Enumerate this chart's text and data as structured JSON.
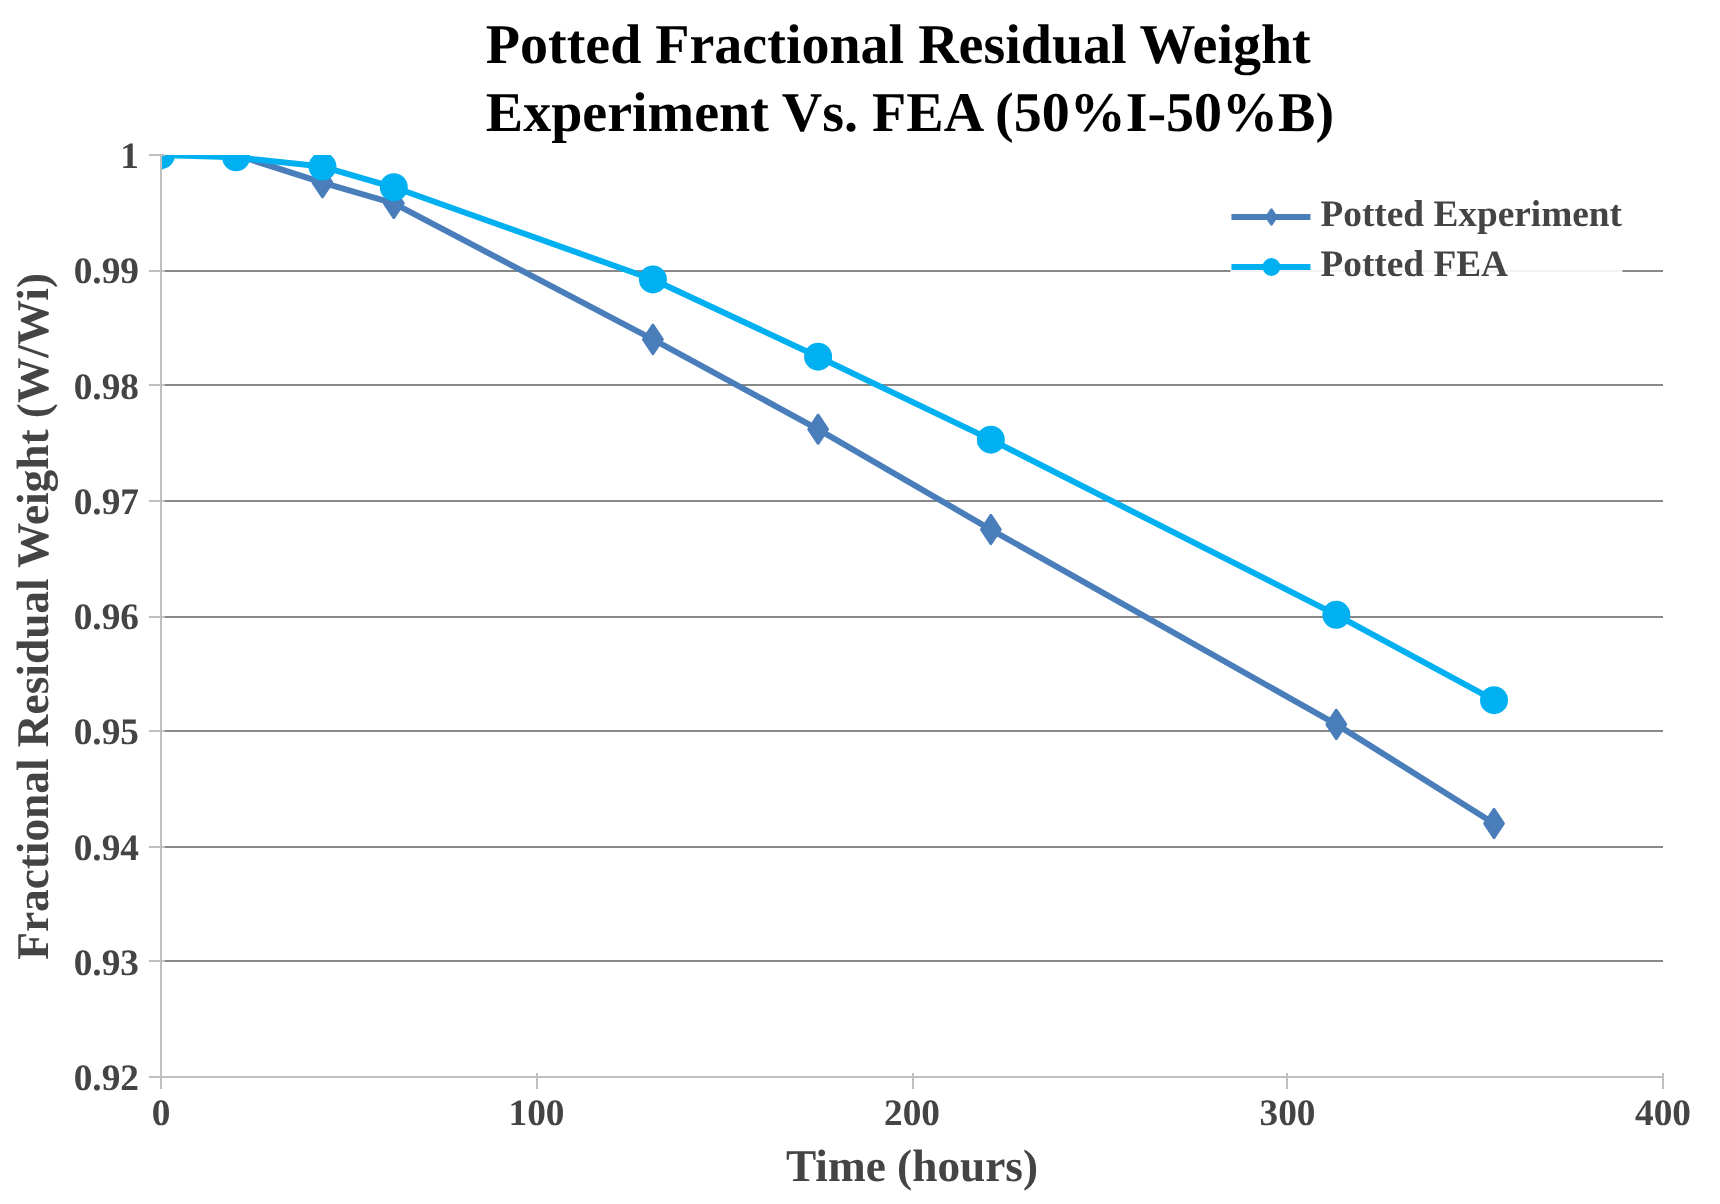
{
  "chart_data": {
    "type": "line",
    "title": "Potted Fractional Residual Weight\nExperiment Vs. FEA (50%I-50%B)",
    "xlabel": "Time (hours)",
    "ylabel": "Fractional Residual Weight (W/Wi)",
    "series": [
      {
        "name": "Potted Experiment",
        "color": "#4a7ebb",
        "marker": "diamond",
        "x": [
          0,
          20,
          43,
          62,
          131,
          175,
          221,
          313,
          355
        ],
        "values": [
          1.0,
          1.0,
          0.9976,
          0.9958,
          0.984,
          0.9762,
          0.9675,
          0.9506,
          0.942
        ]
      },
      {
        "name": "Potted FEA",
        "color": "#00b0f0",
        "marker": "circle",
        "x": [
          0,
          20,
          43,
          62,
          131,
          175,
          221,
          313,
          355
        ],
        "values": [
          1.0,
          0.9998,
          0.999,
          0.9972,
          0.9892,
          0.9825,
          0.9753,
          0.9601,
          0.9527
        ]
      }
    ],
    "xlim": [
      0,
      400
    ],
    "xticks": [
      0,
      100,
      200,
      300,
      400
    ],
    "ylim": [
      0.92,
      1.0
    ],
    "yticks": [
      0.92,
      0.93,
      0.94,
      0.95,
      0.96,
      0.97,
      0.98,
      0.99,
      1
    ],
    "grid": "y",
    "legend": "top right"
  }
}
